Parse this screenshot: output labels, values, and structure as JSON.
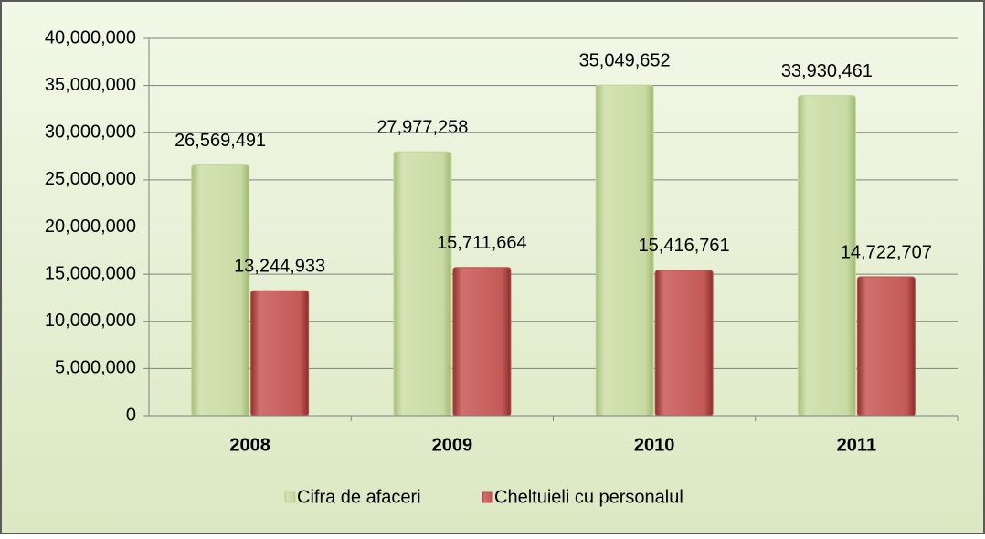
{
  "chart_data": {
    "type": "bar",
    "categories": [
      "2008",
      "2009",
      "2010",
      "2011"
    ],
    "series": [
      {
        "name": "Cifra de afaceri",
        "color": "#c3d69b",
        "values": [
          26569491,
          27977258,
          35049652,
          33930461
        ],
        "value_labels": [
          "26,569,491",
          "27,977,258",
          "35,049,652",
          "33,930,461"
        ]
      },
      {
        "name": "Cheltuieli cu personalul",
        "color": "#c0504d",
        "values": [
          13244933,
          15711664,
          15416761,
          14722707
        ],
        "value_labels": [
          "13,244,933",
          "15,711,664",
          "15,416,761",
          "14,722,707"
        ]
      }
    ],
    "ylim": [
      0,
      40000000
    ],
    "yticks": [
      0,
      {
        "value": 5000000,
        "label": "5,000,000"
      },
      {
        "value": 10000000,
        "label": "10,000,000"
      },
      {
        "value": 15000000,
        "label": "15,000,000"
      },
      {
        "value": 20000000,
        "label": "20,000,000"
      },
      {
        "value": 25000000,
        "label": "25,000,000"
      },
      {
        "value": 30000000,
        "label": "30,000,000"
      },
      {
        "value": 35000000,
        "label": "35,000,000"
      },
      {
        "value": 40000000,
        "label": "40,000,000"
      }
    ],
    "grid": true,
    "legend": "bottom"
  }
}
